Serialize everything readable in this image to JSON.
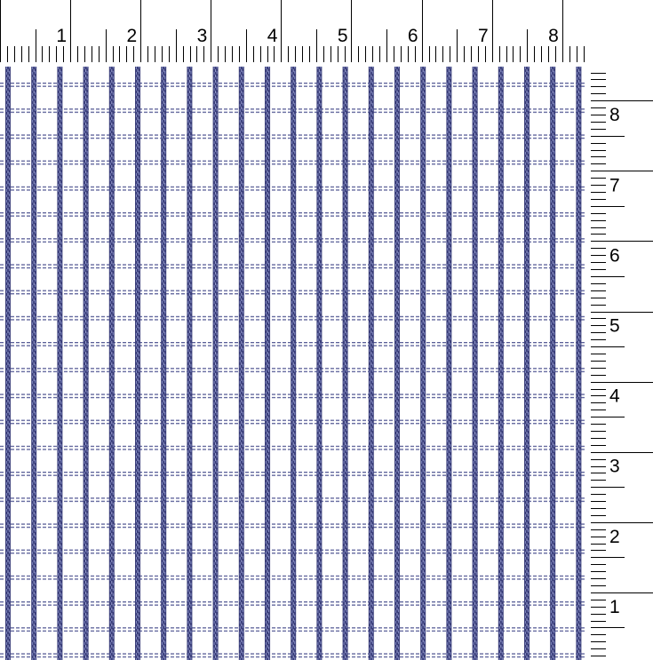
{
  "top_ruler": {
    "labels": [
      "1",
      "2",
      "3",
      "4",
      "5",
      "6",
      "7",
      "8"
    ]
  },
  "right_ruler": {
    "labels": [
      "8",
      "7",
      "6",
      "5",
      "4",
      "3",
      "2",
      "1"
    ]
  },
  "fabric": {
    "stripe_color": "#3b3f7a",
    "background": "#ffffff"
  }
}
